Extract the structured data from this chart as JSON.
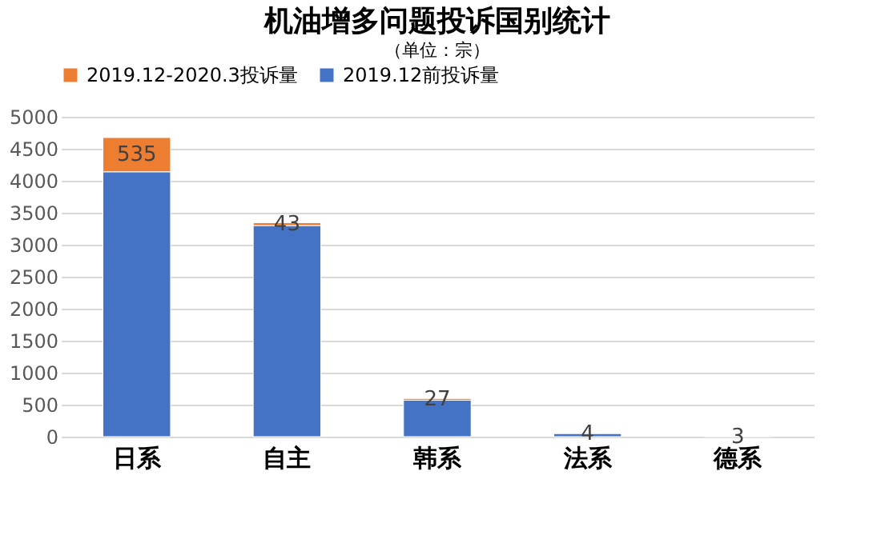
{
  "chart_data": {
    "type": "bar",
    "title": "机油增多问题投诉国别统计",
    "subtitle": "（单位：宗）",
    "categories": [
      "日系",
      "自主",
      "韩系",
      "法系",
      "德系"
    ],
    "stacked": true,
    "series": [
      {
        "name": "2019.12前投诉量",
        "color": "#4472c4",
        "values": [
          4140,
          3300,
          570,
          50,
          null
        ]
      },
      {
        "name": "2019.12-2020.3投诉量",
        "color": "#ed7d31",
        "values": [
          535,
          43,
          27,
          4,
          3
        ],
        "value_labels": [
          "535",
          "43",
          "27",
          "4",
          "3"
        ]
      }
    ],
    "ylim": [
      0,
      5000
    ],
    "yticks": [
      0,
      500,
      1000,
      1500,
      2000,
      2500,
      3000,
      3500,
      4000,
      4500,
      5000
    ],
    "grid": "y",
    "legend": "top"
  }
}
